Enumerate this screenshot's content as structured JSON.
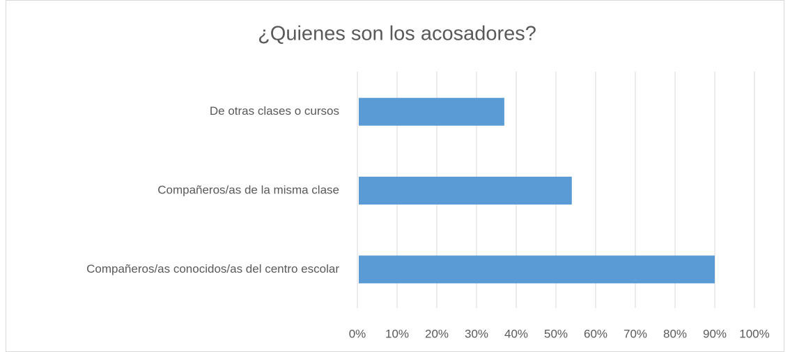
{
  "chart_data": {
    "type": "bar",
    "orientation": "horizontal",
    "title": "¿Quienes son los acosadores?",
    "categories": [
      "De otras clases o cursos",
      "Compañeros/as de la misma clase",
      "Compañeros/as conocidos/as del centro escolar"
    ],
    "values": [
      37,
      54,
      90
    ],
    "color": "#5b9bd5",
    "xlim": [
      0,
      100
    ],
    "xticks": [
      {
        "value": 0,
        "label": "0%"
      },
      {
        "value": 10,
        "label": "10%"
      },
      {
        "value": 20,
        "label": "20%"
      },
      {
        "value": 30,
        "label": "30%"
      },
      {
        "value": 40,
        "label": "40%"
      },
      {
        "value": 50,
        "label": "50%"
      },
      {
        "value": 60,
        "label": "60%"
      },
      {
        "value": 70,
        "label": "70%"
      },
      {
        "value": 80,
        "label": "80%"
      },
      {
        "value": 90,
        "label": "90%"
      },
      {
        "value": 100,
        "label": "100%"
      }
    ],
    "grid": true
  }
}
